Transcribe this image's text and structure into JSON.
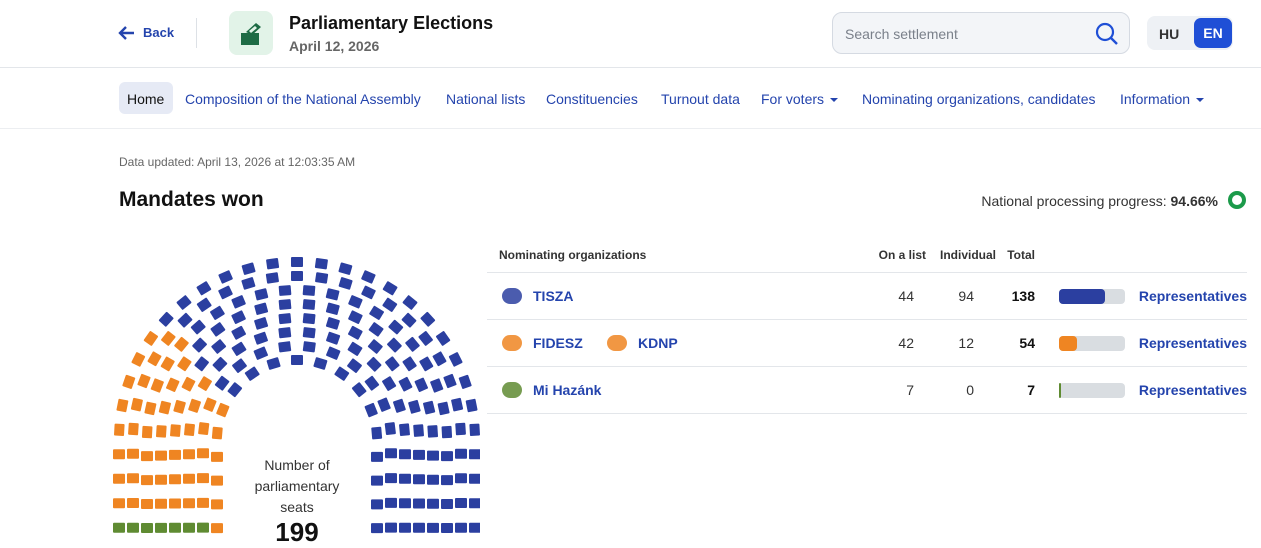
{
  "header": {
    "back": "Back",
    "title": "Parliamentary Elections",
    "date": "April 12, 2026",
    "search_placeholder": "Search settlement",
    "languages": [
      "HU",
      "EN"
    ]
  },
  "nav": [
    "Home",
    "Composition of the National Assembly",
    "National lists",
    "Constituencies",
    "Turnout data",
    "For voters",
    "Nominating organizations, candidates",
    "Information"
  ],
  "updated": "Data updated: April 13, 2026 at 12:03:35 AM",
  "section_title": "Mandates won",
  "progress_label": "National processing progress:",
  "progress_value": "94.66%",
  "seats_label": "Number of parliamentary seats",
  "seats_total": 199,
  "table": {
    "headers": [
      "Nominating organizations",
      "On a list",
      "Individual",
      "Total"
    ],
    "rows": [
      {
        "organizations": [
          "TISZA"
        ],
        "on_list": 44,
        "individual": 94,
        "total": 138,
        "color": "#2b3fa0",
        "link": "Representatives"
      },
      {
        "organizations": [
          "FIDESZ",
          "KDNP"
        ],
        "on_list": 42,
        "individual": 12,
        "total": 54,
        "color": "#ef8522",
        "link": "Representatives"
      },
      {
        "organizations": [
          "Mi Hazánk"
        ],
        "on_list": 7,
        "individual": 0,
        "total": 7,
        "color": "#5f8b32",
        "link": "Representatives"
      }
    ]
  }
}
